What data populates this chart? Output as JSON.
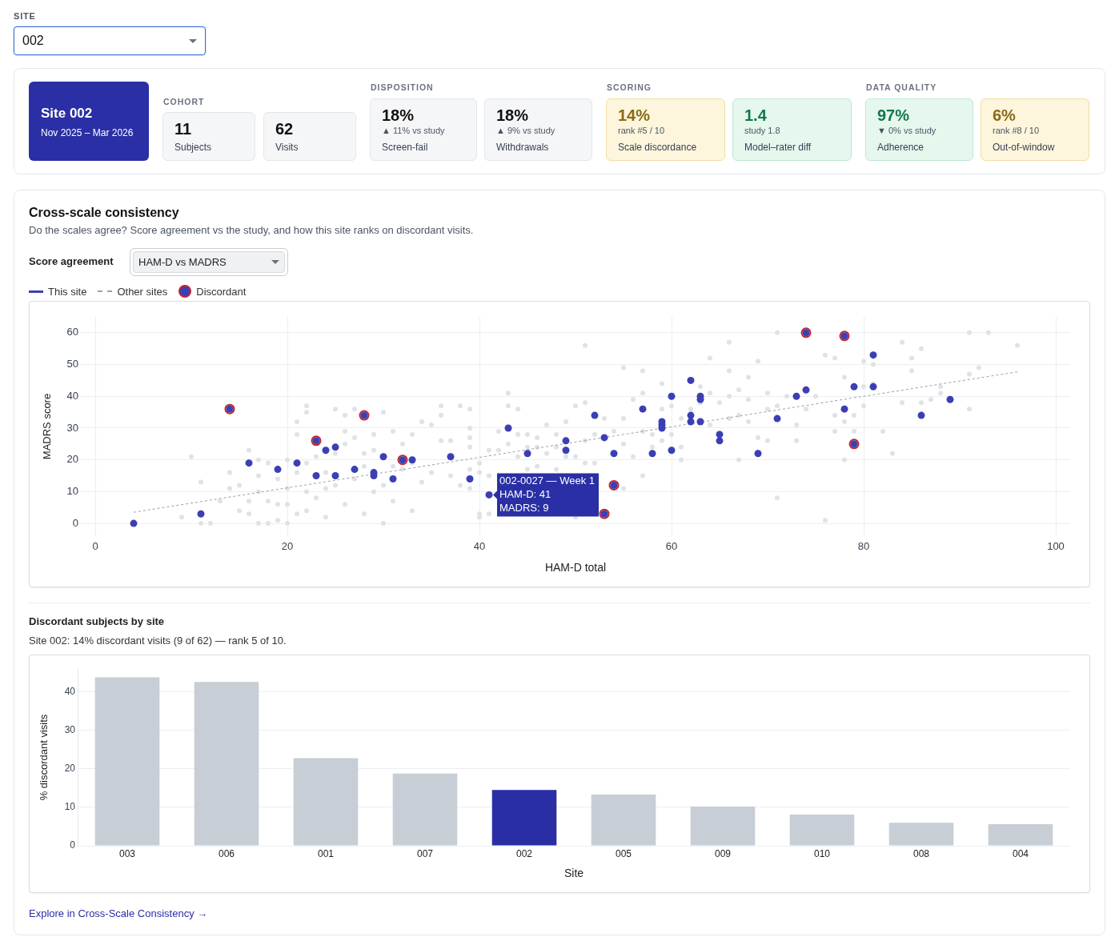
{
  "chart_data": [
    {
      "type": "other",
      "title": "Site 002",
      "subtitle": "Nov 2025 – Mar 2026",
      "annotations": [
        "SITE",
        "002",
        "COHORT",
        "11",
        "Subjects",
        "62",
        "Visits",
        "DISPOSITION",
        "18%",
        "▲ 11% vs study",
        "Screen-fail",
        "18%",
        "▲ 9% vs study",
        "Withdrawals",
        "SCORING",
        "14%",
        "rank #5 / 10",
        "Scale discordance",
        "1.4",
        "study 1.8",
        "Model–rater diff",
        "DATA QUALITY",
        "97%",
        "▼ 0% vs study",
        "Adherence",
        "6%",
        "rank #8 / 10",
        "Out-of-window"
      ]
    },
    {
      "type": "scatter",
      "title": "Cross-scale consistency",
      "subtitle": "Do the scales agree? Score agreement vs the study, and how this site ranks on discordant visits.",
      "xlabel": "HAM-D total",
      "ylabel": "MADRS score",
      "xlim": [
        -1.5,
        101.5
      ],
      "ylim": [
        -4,
        65
      ],
      "xticks": [
        0,
        20,
        40,
        60,
        80,
        100
      ],
      "yticks": [
        0,
        10,
        20,
        30,
        40,
        50,
        60
      ],
      "grid": true,
      "legend": "top left",
      "marker": "circle",
      "series": [
        {
          "name": "This site",
          "color": "#3b3fb4",
          "x": [
            4,
            11,
            14,
            16,
            19,
            21,
            23,
            23,
            24,
            25,
            25,
            27,
            28,
            29,
            29,
            30,
            31,
            32,
            33,
            37,
            39,
            41,
            43,
            45,
            49,
            49,
            52,
            53,
            53,
            54,
            54,
            57,
            58,
            59,
            59,
            59,
            60,
            60,
            62,
            62,
            62,
            63,
            63,
            63,
            65,
            65,
            69,
            71,
            73,
            74,
            74,
            78,
            78,
            79,
            79,
            81,
            81,
            86,
            89
          ],
          "values": [
            0,
            3,
            36,
            19,
            17,
            19,
            26,
            15,
            23,
            24,
            15,
            17,
            34,
            16,
            15,
            21,
            14,
            20,
            20,
            21,
            14,
            9,
            30,
            22,
            26,
            23,
            34,
            27,
            3,
            22,
            12,
            36,
            22,
            32,
            31,
            30,
            40,
            23,
            45,
            34,
            32,
            40,
            39,
            32,
            28,
            26,
            22,
            33,
            40,
            42,
            60,
            59,
            36,
            43,
            25,
            53,
            43,
            34,
            39
          ]
        },
        {
          "name": "Other sites",
          "type": "line",
          "line_style": "dashed",
          "marker": "none",
          "color": "#9aa0a8",
          "x": [
            4,
            96
          ],
          "values": [
            3.5,
            47.7
          ]
        },
        {
          "name": "Discordant",
          "color": "#c0262d",
          "x": [
            14,
            23,
            28,
            32,
            53,
            54,
            74,
            78,
            79
          ],
          "values": [
            36,
            26,
            34,
            20,
            3,
            12,
            60,
            59,
            25
          ]
        },
        {
          "color": "#dfe2e7",
          "x": [
            9,
            10,
            11,
            11,
            12,
            13,
            14,
            14,
            15,
            15,
            16,
            16,
            16,
            17,
            17,
            17,
            17,
            18,
            18,
            18,
            19,
            19,
            19,
            20,
            20,
            20,
            20,
            21,
            21,
            21,
            21,
            22,
            22,
            22,
            22,
            22,
            23,
            23,
            24,
            24,
            24,
            25,
            25,
            25,
            26,
            26,
            26,
            26,
            27,
            27,
            27,
            28,
            28,
            28,
            29,
            29,
            29,
            30,
            30,
            30,
            31,
            31,
            31,
            32,
            32,
            33,
            33,
            33,
            34,
            34,
            35,
            35,
            36,
            36,
            36,
            37,
            37,
            38,
            38,
            39,
            39,
            39,
            39,
            39,
            39,
            40,
            40,
            40,
            40,
            41,
            41,
            41,
            42,
            42,
            43,
            43,
            43,
            44,
            44,
            44,
            45,
            45,
            45,
            46,
            46,
            46,
            47,
            47,
            48,
            48,
            48,
            49,
            49,
            50,
            50,
            50,
            51,
            51,
            51,
            51,
            52,
            52,
            53,
            54,
            55,
            55,
            55,
            55,
            56,
            56,
            57,
            57,
            57,
            57,
            58,
            58,
            59,
            59,
            59,
            60,
            60,
            61,
            61,
            61,
            62,
            63,
            63,
            64,
            64,
            64,
            65,
            66,
            66,
            66,
            66,
            67,
            67,
            67,
            68,
            68,
            68,
            69,
            69,
            70,
            70,
            70,
            71,
            71,
            71,
            72,
            73,
            73,
            74,
            75,
            76,
            76,
            77,
            77,
            77,
            78,
            78,
            78,
            79,
            79,
            80,
            80,
            80,
            81,
            81,
            82,
            83,
            84,
            84,
            85,
            85,
            86,
            86,
            87,
            88,
            88,
            91,
            91,
            91,
            92,
            93,
            96
          ],
          "values": [
            2,
            21,
            13,
            0,
            0,
            7,
            16,
            11,
            12,
            4,
            23,
            7,
            3,
            20,
            15,
            10,
            0,
            19,
            7,
            0,
            14,
            6,
            1,
            20,
            11,
            6,
            0,
            32,
            28,
            16,
            3,
            37,
            35,
            19,
            10,
            4,
            21,
            8,
            16,
            11,
            2,
            36,
            22,
            12,
            34,
            29,
            25,
            6,
            36,
            27,
            14,
            22,
            18,
            3,
            28,
            23,
            10,
            35,
            12,
            0,
            29,
            18,
            7,
            25,
            17,
            28,
            19,
            4,
            32,
            13,
            31,
            16,
            37,
            34,
            26,
            26,
            15,
            37,
            12,
            36,
            30,
            27,
            24,
            17,
            11,
            19,
            16,
            3,
            2,
            23,
            15,
            3,
            29,
            23,
            41,
            37,
            25,
            36,
            28,
            21,
            28,
            24,
            17,
            27,
            24,
            18,
            31,
            22,
            28,
            24,
            17,
            32,
            21,
            37,
            21,
            2,
            56,
            38,
            26,
            19,
            28,
            19,
            33,
            29,
            49,
            33,
            25,
            11,
            39,
            21,
            48,
            41,
            29,
            15,
            28,
            24,
            44,
            36,
            26,
            37,
            28,
            33,
            24,
            20,
            36,
            43,
            38,
            52,
            41,
            31,
            38,
            57,
            48,
            40,
            33,
            42,
            34,
            20,
            46,
            39,
            32,
            51,
            27,
            41,
            36,
            26,
            60,
            37,
            8,
            40,
            31,
            26,
            36,
            40,
            53,
            1,
            52,
            34,
            29,
            46,
            32,
            20,
            34,
            29,
            51,
            43,
            37,
            50,
            44,
            29,
            22,
            57,
            38,
            52,
            48,
            55,
            38,
            39,
            43,
            41,
            60,
            47,
            36,
            49,
            60,
            56
          ]
        }
      ],
      "annotations": [
        "Score agreement",
        "HAM-D vs MADRS",
        {
          "text": "002-0027 — Week 1\nHAM-D: 41\nMADRS: 9",
          "x": 41,
          "y": 9
        }
      ]
    },
    {
      "type": "bar",
      "title": "Discordant subjects by site",
      "subtitle": "Site 002: 14% discordant visits (9 of 62) — rank 5 of 10.",
      "xlabel": "Site",
      "ylabel": "% discordant visits",
      "categories": [
        "003",
        "006",
        "001",
        "007",
        "002",
        "005",
        "009",
        "010",
        "008",
        "004"
      ],
      "values": [
        43.8,
        42.6,
        22.8,
        18.8,
        14.5,
        13.3,
        10.2,
        8.1,
        6.0,
        5.6
      ],
      "colors": [
        "#c7ced5",
        "#c7ced5",
        "#c7ced5",
        "#c7ced5",
        "#2a2ea5",
        "#c7ced5",
        "#c7ced5",
        "#c7ced5",
        "#c7ced5",
        "#c7ced5"
      ],
      "ylim": [
        0,
        46
      ],
      "yticks": [
        0,
        10,
        20,
        30,
        40
      ],
      "grid": "y",
      "annotations": [
        "Explore in Cross-Scale Consistency →"
      ]
    }
  ]
}
